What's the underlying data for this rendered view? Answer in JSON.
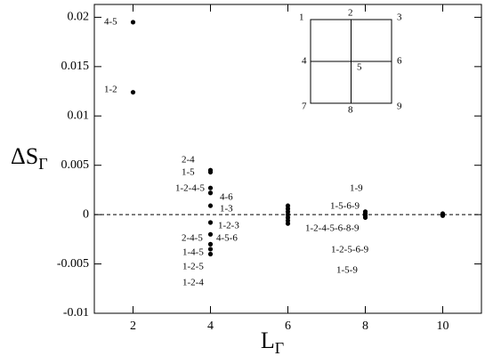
{
  "chart_data": {
    "type": "scatter",
    "ylabel": {
      "main": "ΔS",
      "sub": "Γ"
    },
    "xlabel": {
      "main": "L",
      "sub": "Γ"
    },
    "xlim": [
      1,
      11
    ],
    "xticks": [
      2,
      4,
      6,
      8,
      10
    ],
    "ylim": [
      -0.01,
      0.0213
    ],
    "yticks": [
      0.02,
      0.015,
      0.01,
      0.005,
      0,
      -0.005,
      -0.01
    ],
    "hline": 0,
    "color": "#000000",
    "x": [
      2,
      2,
      4,
      4,
      4,
      4,
      4,
      4,
      4,
      4,
      4,
      4,
      6,
      6,
      6,
      6,
      6,
      6,
      6,
      8,
      8,
      8,
      8,
      10,
      10,
      10
    ],
    "values": [
      0.0195,
      0.0124,
      0.0045,
      0.0043,
      0.0027,
      0.0022,
      0.0009,
      -0.0008,
      -0.002,
      -0.003,
      -0.0035,
      -0.004,
      0.0009,
      0.0006,
      0.0003,
      0,
      -0.0003,
      -0.0006,
      -0.0009,
      0.0003,
      0.0001,
      -0.0001,
      -0.0003,
      0.0001,
      0,
      -0.0001
    ],
    "annotations": [
      "4-5",
      "1-2",
      "2-4",
      "1-5",
      "1-2-4-5",
      "4-6",
      "1-3",
      "1-2-3",
      "2-4-5",
      "4-5-6",
      "1-4-5",
      "1-2-5",
      "1-2-4",
      "1-9",
      "1-5-6-9",
      "1-2-4-5-6-8-9",
      "1-2-5-6-9",
      "1-5-9"
    ],
    "inset_labels": [
      "1",
      "2",
      "3",
      "4",
      "5",
      "6",
      "7",
      "8",
      "9"
    ]
  }
}
